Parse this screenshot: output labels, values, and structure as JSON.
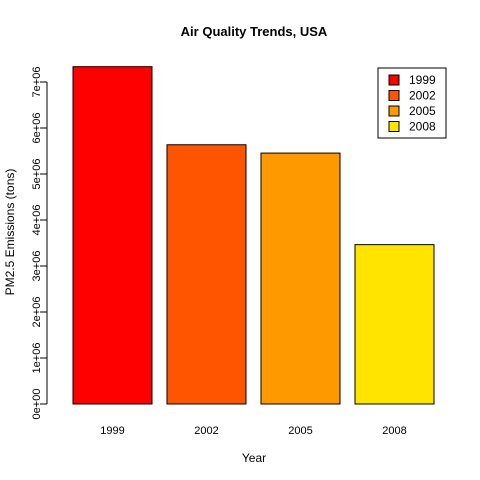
{
  "chart_data": {
    "type": "bar",
    "title": "Air Quality Trends, USA",
    "xlabel": "Year",
    "ylabel": "PM2.5 Emissions (tons)",
    "categories": [
      "1999",
      "2002",
      "2005",
      "2008"
    ],
    "values": [
      7332967,
      5635780,
      5454703,
      3464206
    ],
    "colors": [
      "#ff0000",
      "#ff5500",
      "#ff9900",
      "#ffe400"
    ],
    "ylim": [
      0,
      7500000
    ],
    "yticks": [
      0,
      1000000,
      2000000,
      3000000,
      4000000,
      5000000,
      6000000,
      7000000
    ],
    "ytick_labels": [
      "0e+00",
      "1e+06",
      "2e+06",
      "3e+06",
      "4e+06",
      "5e+06",
      "6e+06",
      "7e+06"
    ],
    "grid": false,
    "legend": {
      "placement": "top-right",
      "entries": [
        "1999",
        "2002",
        "2005",
        "2008"
      ]
    }
  }
}
